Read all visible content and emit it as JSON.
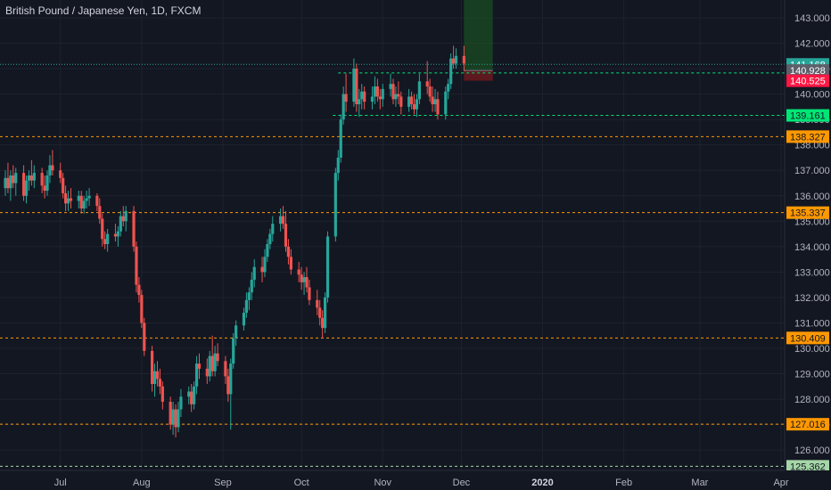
{
  "header": {
    "title": "British Pound / Japanese Yen, 1D, FXCM"
  },
  "colors": {
    "background": "#131722",
    "up": "#26a69a",
    "down": "#ef5350",
    "orange_level": "#ff9800",
    "green_level": "#00e676",
    "last_price_badge": "#26a69a",
    "grid": "#1e222d",
    "axis_text": "#b2b5be"
  },
  "chart_data": {
    "type": "candlestick",
    "title": "British Pound / Japanese Yen, 1D, FXCM",
    "ylim": [
      125.2,
      143.7
    ],
    "y_ticks": [
      "126.000",
      "127.000",
      "128.000",
      "129.000",
      "130.000",
      "131.000",
      "132.000",
      "133.000",
      "134.000",
      "135.000",
      "136.000",
      "137.000",
      "138.000",
      "139.000",
      "140.000",
      "141.000",
      "142.000",
      "143.000"
    ],
    "x_ticks": [
      "Jul",
      "Aug",
      "Sep",
      "Oct",
      "Nov",
      "Dec",
      "2020",
      "Feb",
      "Mar",
      "Apr"
    ],
    "x_tick_dates": [
      "2019-07-01",
      "2019-08-01",
      "2019-09-01",
      "2019-10-01",
      "2019-11-01",
      "2019-12-01",
      "2020-01-01",
      "2020-02-01",
      "2020-03-01",
      "2020-04-01"
    ],
    "x_range": [
      "2019-06-10",
      "2020-04-01"
    ],
    "horizontal_levels": [
      {
        "value": 138.327,
        "label": "138.327",
        "color": "#ff9800",
        "style": "dashed"
      },
      {
        "value": 135.337,
        "label": "135.337",
        "color": "#ff9800",
        "style": "dashed"
      },
      {
        "value": 130.409,
        "label": "130.409",
        "color": "#ff9800",
        "style": "dashed"
      },
      {
        "value": 127.016,
        "label": "127.016",
        "color": "#ff9800",
        "style": "dashed"
      },
      {
        "value": 125.362,
        "label": "125.362",
        "color": "#a5d6a7",
        "style": "dashed"
      },
      {
        "value": 140.83,
        "label": "140.830",
        "color": "#00e676",
        "style": "dashed",
        "from": "2019-10-15"
      },
      {
        "value": 139.161,
        "label": "139.161",
        "color": "#00e676",
        "style": "dashed",
        "from": "2019-10-13"
      }
    ],
    "price_badges": [
      {
        "value": 141.168,
        "label": "141.168",
        "bg": "#26a69a",
        "fg": "#ffffff"
      },
      {
        "value": 140.928,
        "label": "140.928",
        "bg": "#5d606b",
        "fg": "#ffffff"
      },
      {
        "value": 140.525,
        "label": "140.525",
        "bg": "#ff1744",
        "fg": "#ffffff"
      }
    ],
    "last_price": 141.168,
    "position_box": {
      "start": "2019-12-02",
      "end": "2019-12-13",
      "entry": 140.928,
      "target": 143.7,
      "stop": 140.525
    },
    "candles": [
      {
        "d": "2019-06-10",
        "o": 136.3,
        "h": 137.0,
        "l": 136.0,
        "c": 136.7
      },
      {
        "d": "2019-06-11",
        "o": 136.7,
        "h": 137.3,
        "l": 136.1,
        "c": 136.3
      },
      {
        "d": "2019-06-12",
        "o": 136.3,
        "h": 137.0,
        "l": 135.8,
        "c": 136.8
      },
      {
        "d": "2019-06-13",
        "o": 136.8,
        "h": 137.2,
        "l": 136.3,
        "c": 136.5
      },
      {
        "d": "2019-06-14",
        "o": 136.5,
        "h": 137.1,
        "l": 136.0,
        "c": 136.9
      },
      {
        "d": "2019-06-17",
        "o": 136.9,
        "h": 137.2,
        "l": 135.8,
        "c": 136.0
      },
      {
        "d": "2019-06-18",
        "o": 136.0,
        "h": 136.8,
        "l": 135.7,
        "c": 136.6
      },
      {
        "d": "2019-06-19",
        "o": 136.6,
        "h": 137.0,
        "l": 136.2,
        "c": 136.8
      },
      {
        "d": "2019-06-20",
        "o": 136.8,
        "h": 137.4,
        "l": 136.4,
        "c": 136.6
      },
      {
        "d": "2019-06-21",
        "o": 136.6,
        "h": 137.2,
        "l": 136.3,
        "c": 136.9
      },
      {
        "d": "2019-06-24",
        "o": 136.9,
        "h": 137.1,
        "l": 136.1,
        "c": 136.4
      },
      {
        "d": "2019-06-25",
        "o": 136.4,
        "h": 136.8,
        "l": 135.9,
        "c": 136.2
      },
      {
        "d": "2019-06-26",
        "o": 136.2,
        "h": 137.0,
        "l": 136.0,
        "c": 136.8
      },
      {
        "d": "2019-06-27",
        "o": 136.8,
        "h": 137.6,
        "l": 136.5,
        "c": 137.2
      },
      {
        "d": "2019-06-28",
        "o": 137.2,
        "h": 137.8,
        "l": 136.8,
        "c": 137.0
      },
      {
        "d": "2019-07-01",
        "o": 137.0,
        "h": 137.3,
        "l": 136.5,
        "c": 136.7
      },
      {
        "d": "2019-07-02",
        "o": 136.7,
        "h": 136.9,
        "l": 135.9,
        "c": 136.1
      },
      {
        "d": "2019-07-03",
        "o": 136.1,
        "h": 136.4,
        "l": 135.4,
        "c": 135.7
      },
      {
        "d": "2019-07-04",
        "o": 135.7,
        "h": 136.2,
        "l": 135.4,
        "c": 135.9
      },
      {
        "d": "2019-07-05",
        "o": 135.9,
        "h": 136.3,
        "l": 135.5,
        "c": 135.8
      },
      {
        "d": "2019-07-08",
        "o": 135.8,
        "h": 136.2,
        "l": 135.5,
        "c": 136.0
      },
      {
        "d": "2019-07-09",
        "o": 136.0,
        "h": 136.2,
        "l": 135.3,
        "c": 135.5
      },
      {
        "d": "2019-07-10",
        "o": 135.5,
        "h": 136.0,
        "l": 135.3,
        "c": 135.8
      },
      {
        "d": "2019-07-11",
        "o": 135.8,
        "h": 136.2,
        "l": 135.5,
        "c": 135.9
      },
      {
        "d": "2019-07-12",
        "o": 135.9,
        "h": 136.3,
        "l": 135.6,
        "c": 136.0
      },
      {
        "d": "2019-07-15",
        "o": 136.0,
        "h": 136.1,
        "l": 135.4,
        "c": 135.6
      },
      {
        "d": "2019-07-16",
        "o": 135.6,
        "h": 135.9,
        "l": 134.9,
        "c": 135.1
      },
      {
        "d": "2019-07-17",
        "o": 135.1,
        "h": 135.3,
        "l": 134.0,
        "c": 134.3
      },
      {
        "d": "2019-07-18",
        "o": 134.3,
        "h": 134.6,
        "l": 133.9,
        "c": 134.1
      },
      {
        "d": "2019-07-19",
        "o": 134.1,
        "h": 134.7,
        "l": 133.8,
        "c": 134.5
      },
      {
        "d": "2019-07-22",
        "o": 134.5,
        "h": 134.9,
        "l": 134.2,
        "c": 134.4
      },
      {
        "d": "2019-07-23",
        "o": 134.4,
        "h": 134.8,
        "l": 134.0,
        "c": 134.6
      },
      {
        "d": "2019-07-24",
        "o": 134.6,
        "h": 135.4,
        "l": 134.4,
        "c": 135.2
      },
      {
        "d": "2019-07-25",
        "o": 135.2,
        "h": 135.6,
        "l": 134.8,
        "c": 135.0
      },
      {
        "d": "2019-07-26",
        "o": 135.0,
        "h": 135.6,
        "l": 134.6,
        "c": 135.4
      },
      {
        "d": "2019-07-29",
        "o": 135.4,
        "h": 135.6,
        "l": 133.8,
        "c": 134.0
      },
      {
        "d": "2019-07-30",
        "o": 134.0,
        "h": 134.2,
        "l": 132.2,
        "c": 132.5
      },
      {
        "d": "2019-07-31",
        "o": 132.5,
        "h": 132.8,
        "l": 131.8,
        "c": 132.1
      },
      {
        "d": "2019-08-01",
        "o": 132.1,
        "h": 132.3,
        "l": 130.8,
        "c": 131.0
      },
      {
        "d": "2019-08-02",
        "o": 131.0,
        "h": 131.2,
        "l": 129.7,
        "c": 129.9
      },
      {
        "d": "2019-08-05",
        "o": 129.9,
        "h": 130.1,
        "l": 128.3,
        "c": 128.6
      },
      {
        "d": "2019-08-06",
        "o": 128.6,
        "h": 129.4,
        "l": 128.1,
        "c": 129.1
      },
      {
        "d": "2019-08-07",
        "o": 129.1,
        "h": 129.5,
        "l": 128.5,
        "c": 128.8
      },
      {
        "d": "2019-08-08",
        "o": 128.8,
        "h": 129.2,
        "l": 128.2,
        "c": 128.5
      },
      {
        "d": "2019-08-09",
        "o": 128.5,
        "h": 128.7,
        "l": 127.6,
        "c": 127.9
      },
      {
        "d": "2019-08-12",
        "o": 127.9,
        "h": 128.1,
        "l": 126.8,
        "c": 127.0
      },
      {
        "d": "2019-08-13",
        "o": 127.0,
        "h": 127.9,
        "l": 126.6,
        "c": 127.6
      },
      {
        "d": "2019-08-14",
        "o": 127.6,
        "h": 127.8,
        "l": 126.5,
        "c": 126.9
      },
      {
        "d": "2019-08-15",
        "o": 126.9,
        "h": 127.9,
        "l": 126.7,
        "c": 127.6
      },
      {
        "d": "2019-08-16",
        "o": 127.6,
        "h": 128.4,
        "l": 127.3,
        "c": 128.1
      },
      {
        "d": "2019-08-19",
        "o": 128.1,
        "h": 128.5,
        "l": 127.8,
        "c": 128.3
      },
      {
        "d": "2019-08-20",
        "o": 128.3,
        "h": 128.6,
        "l": 127.5,
        "c": 127.8
      },
      {
        "d": "2019-08-21",
        "o": 127.8,
        "h": 128.7,
        "l": 127.6,
        "c": 128.5
      },
      {
        "d": "2019-08-22",
        "o": 128.5,
        "h": 129.7,
        "l": 128.2,
        "c": 129.4
      },
      {
        "d": "2019-08-23",
        "o": 129.4,
        "h": 129.8,
        "l": 128.8,
        "c": 129.2
      },
      {
        "d": "2019-08-26",
        "o": 129.2,
        "h": 129.6,
        "l": 128.6,
        "c": 128.9
      },
      {
        "d": "2019-08-27",
        "o": 128.9,
        "h": 129.9,
        "l": 128.7,
        "c": 129.7
      },
      {
        "d": "2019-08-28",
        "o": 129.7,
        "h": 130.5,
        "l": 128.9,
        "c": 129.1
      },
      {
        "d": "2019-08-29",
        "o": 129.1,
        "h": 130.1,
        "l": 128.9,
        "c": 129.8
      },
      {
        "d": "2019-08-30",
        "o": 129.8,
        "h": 130.2,
        "l": 129.3,
        "c": 129.5
      },
      {
        "d": "2019-09-02",
        "o": 129.5,
        "h": 129.7,
        "l": 128.6,
        "c": 128.9
      },
      {
        "d": "2019-09-03",
        "o": 128.9,
        "h": 129.2,
        "l": 127.9,
        "c": 128.2
      },
      {
        "d": "2019-09-04",
        "o": 128.2,
        "h": 129.6,
        "l": 126.8,
        "c": 129.4
      },
      {
        "d": "2019-09-05",
        "o": 129.4,
        "h": 130.6,
        "l": 129.2,
        "c": 130.4
      },
      {
        "d": "2019-09-06",
        "o": 130.4,
        "h": 131.1,
        "l": 130.1,
        "c": 130.9
      },
      {
        "d": "2019-09-09",
        "o": 130.9,
        "h": 131.6,
        "l": 130.7,
        "c": 131.4
      },
      {
        "d": "2019-09-10",
        "o": 131.4,
        "h": 132.2,
        "l": 131.2,
        "c": 131.9
      },
      {
        "d": "2019-09-11",
        "o": 131.9,
        "h": 132.4,
        "l": 131.5,
        "c": 132.2
      },
      {
        "d": "2019-09-12",
        "o": 132.2,
        "h": 133.0,
        "l": 131.9,
        "c": 132.7
      },
      {
        "d": "2019-09-13",
        "o": 132.7,
        "h": 133.5,
        "l": 132.4,
        "c": 133.2
      },
      {
        "d": "2019-09-16",
        "o": 133.2,
        "h": 133.6,
        "l": 132.6,
        "c": 133.0
      },
      {
        "d": "2019-09-17",
        "o": 133.0,
        "h": 133.9,
        "l": 132.8,
        "c": 133.6
      },
      {
        "d": "2019-09-18",
        "o": 133.6,
        "h": 134.3,
        "l": 133.4,
        "c": 134.1
      },
      {
        "d": "2019-09-19",
        "o": 134.1,
        "h": 134.7,
        "l": 133.9,
        "c": 134.5
      },
      {
        "d": "2019-09-20",
        "o": 134.5,
        "h": 135.2,
        "l": 134.2,
        "c": 134.9
      },
      {
        "d": "2019-09-23",
        "o": 134.9,
        "h": 135.5,
        "l": 134.6,
        "c": 135.2
      },
      {
        "d": "2019-09-24",
        "o": 135.2,
        "h": 135.6,
        "l": 134.7,
        "c": 134.9
      },
      {
        "d": "2019-09-25",
        "o": 134.9,
        "h": 135.4,
        "l": 133.8,
        "c": 134.0
      },
      {
        "d": "2019-09-26",
        "o": 134.0,
        "h": 134.3,
        "l": 133.3,
        "c": 133.6
      },
      {
        "d": "2019-09-27",
        "o": 133.6,
        "h": 133.9,
        "l": 132.9,
        "c": 133.1
      },
      {
        "d": "2019-09-30",
        "o": 133.1,
        "h": 133.4,
        "l": 132.6,
        "c": 132.9
      },
      {
        "d": "2019-10-01",
        "o": 132.9,
        "h": 133.2,
        "l": 132.3,
        "c": 132.6
      },
      {
        "d": "2019-10-02",
        "o": 132.6,
        "h": 133.0,
        "l": 132.1,
        "c": 132.8
      },
      {
        "d": "2019-10-03",
        "o": 132.8,
        "h": 133.2,
        "l": 132.2,
        "c": 132.4
      },
      {
        "d": "2019-10-04",
        "o": 132.4,
        "h": 132.7,
        "l": 131.7,
        "c": 131.9
      },
      {
        "d": "2019-10-07",
        "o": 131.9,
        "h": 132.3,
        "l": 131.3,
        "c": 131.6
      },
      {
        "d": "2019-10-08",
        "o": 131.6,
        "h": 131.9,
        "l": 130.9,
        "c": 131.2
      },
      {
        "d": "2019-10-09",
        "o": 131.2,
        "h": 131.5,
        "l": 130.4,
        "c": 130.8
      },
      {
        "d": "2019-10-10",
        "o": 130.8,
        "h": 132.2,
        "l": 130.6,
        "c": 132.0
      },
      {
        "d": "2019-10-11",
        "o": 132.0,
        "h": 134.6,
        "l": 131.8,
        "c": 134.4
      },
      {
        "d": "2019-10-14",
        "o": 134.4,
        "h": 137.1,
        "l": 134.2,
        "c": 136.9
      },
      {
        "d": "2019-10-15",
        "o": 136.9,
        "h": 137.8,
        "l": 136.6,
        "c": 137.5
      },
      {
        "d": "2019-10-16",
        "o": 137.5,
        "h": 139.2,
        "l": 137.3,
        "c": 139.0
      },
      {
        "d": "2019-10-17",
        "o": 139.0,
        "h": 140.3,
        "l": 138.8,
        "c": 140.0
      },
      {
        "d": "2019-10-18",
        "o": 140.0,
        "h": 140.8,
        "l": 139.3,
        "c": 139.7
      },
      {
        "d": "2019-10-21",
        "o": 139.7,
        "h": 141.4,
        "l": 139.5,
        "c": 141.0
      },
      {
        "d": "2019-10-22",
        "o": 141.0,
        "h": 141.2,
        "l": 139.3,
        "c": 139.6
      },
      {
        "d": "2019-10-23",
        "o": 139.6,
        "h": 140.2,
        "l": 139.1,
        "c": 139.8
      },
      {
        "d": "2019-10-24",
        "o": 139.8,
        "h": 140.4,
        "l": 139.4,
        "c": 140.1
      },
      {
        "d": "2019-10-25",
        "o": 140.1,
        "h": 140.3,
        "l": 139.4,
        "c": 139.7
      },
      {
        "d": "2019-10-28",
        "o": 139.7,
        "h": 140.3,
        "l": 139.4,
        "c": 139.9
      },
      {
        "d": "2019-10-29",
        "o": 139.9,
        "h": 140.7,
        "l": 139.6,
        "c": 140.3
      },
      {
        "d": "2019-10-30",
        "o": 140.3,
        "h": 140.6,
        "l": 139.7,
        "c": 139.9
      },
      {
        "d": "2019-10-31",
        "o": 139.9,
        "h": 140.2,
        "l": 139.4,
        "c": 139.8
      },
      {
        "d": "2019-11-01",
        "o": 139.8,
        "h": 140.4,
        "l": 139.5,
        "c": 140.2
      },
      {
        "d": "2019-11-04",
        "o": 140.2,
        "h": 140.8,
        "l": 139.9,
        "c": 140.4
      },
      {
        "d": "2019-11-05",
        "o": 140.4,
        "h": 140.6,
        "l": 139.6,
        "c": 139.8
      },
      {
        "d": "2019-11-06",
        "o": 139.8,
        "h": 140.3,
        "l": 139.5,
        "c": 140.0
      },
      {
        "d": "2019-11-07",
        "o": 140.0,
        "h": 140.5,
        "l": 139.6,
        "c": 139.9
      },
      {
        "d": "2019-11-08",
        "o": 139.9,
        "h": 140.1,
        "l": 139.2,
        "c": 139.5
      },
      {
        "d": "2019-11-11",
        "o": 139.5,
        "h": 140.2,
        "l": 139.3,
        "c": 139.9
      },
      {
        "d": "2019-11-12",
        "o": 139.9,
        "h": 140.1,
        "l": 139.4,
        "c": 139.6
      },
      {
        "d": "2019-11-13",
        "o": 139.6,
        "h": 140.0,
        "l": 139.2,
        "c": 139.4
      },
      {
        "d": "2019-11-14",
        "o": 139.4,
        "h": 140.0,
        "l": 139.1,
        "c": 139.8
      },
      {
        "d": "2019-11-15",
        "o": 139.8,
        "h": 140.8,
        "l": 139.6,
        "c": 140.5
      },
      {
        "d": "2019-11-18",
        "o": 140.5,
        "h": 141.3,
        "l": 140.0,
        "c": 140.3
      },
      {
        "d": "2019-11-19",
        "o": 140.3,
        "h": 140.6,
        "l": 139.7,
        "c": 139.9
      },
      {
        "d": "2019-11-20",
        "o": 139.9,
        "h": 140.3,
        "l": 139.3,
        "c": 139.6
      },
      {
        "d": "2019-11-21",
        "o": 139.6,
        "h": 140.2,
        "l": 139.3,
        "c": 139.8
      },
      {
        "d": "2019-11-22",
        "o": 139.8,
        "h": 140.1,
        "l": 139.0,
        "c": 139.2
      },
      {
        "d": "2019-11-25",
        "o": 139.2,
        "h": 140.3,
        "l": 139.0,
        "c": 140.1
      },
      {
        "d": "2019-11-26",
        "o": 140.1,
        "h": 140.6,
        "l": 139.8,
        "c": 140.4
      },
      {
        "d": "2019-11-27",
        "o": 140.4,
        "h": 141.6,
        "l": 140.2,
        "c": 141.4
      },
      {
        "d": "2019-11-28",
        "o": 141.4,
        "h": 141.9,
        "l": 141.0,
        "c": 141.2
      },
      {
        "d": "2019-11-29",
        "o": 141.2,
        "h": 141.8,
        "l": 141.0,
        "c": 141.5
      },
      {
        "d": "2019-12-02",
        "o": 141.5,
        "h": 141.9,
        "l": 140.9,
        "c": 141.2
      }
    ]
  }
}
